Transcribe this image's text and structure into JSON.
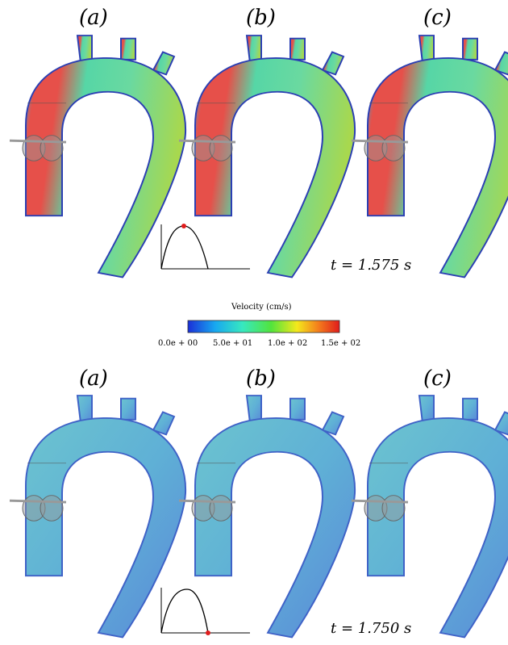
{
  "panels": {
    "labels": [
      "(a)",
      "(b)",
      "(c)"
    ]
  },
  "time_labels": {
    "top": "t = 1.575 s",
    "bottom": "t = 1.750 s"
  },
  "colorbar": {
    "title": "Velocity (cm/s)",
    "ticks": [
      "0.0e + 00",
      "5.0e + 01",
      "1.0e + 02",
      "1.5e + 02"
    ],
    "colors": [
      "#1a2fd8",
      "#18a8f0",
      "#37e8c0",
      "#52e43c",
      "#f4e81c",
      "#f47e1c",
      "#e01c1c"
    ]
  },
  "colors": {
    "vessel_outline": "#2b3fb3",
    "top_fast": "#e6504a",
    "top_mid": "#63d79a",
    "top_slow": "#9fd54a",
    "bottom_main": "#5fb7d1",
    "bottom_edge": "#3f62c7",
    "valve": "#8a8a8a",
    "marker": "#e01c1c"
  }
}
